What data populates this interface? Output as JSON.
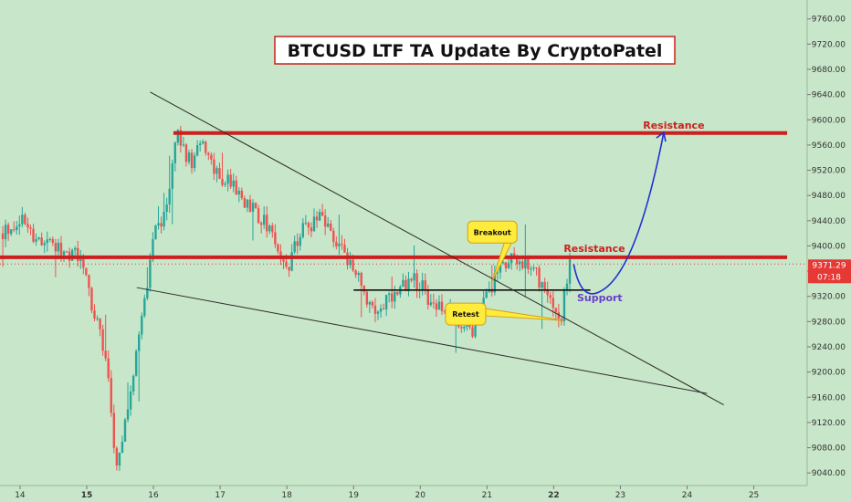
{
  "chart_data": {
    "type": "candlestick",
    "title": "BTCUSD LTF TA Update By CryptoPatel",
    "x_ticks": [
      {
        "label": "14",
        "day": 14
      },
      {
        "label": "15",
        "day": 15
      },
      {
        "label": "16",
        "day": 16
      },
      {
        "label": "17",
        "day": 17
      },
      {
        "label": "18",
        "day": 18
      },
      {
        "label": "19",
        "day": 19
      },
      {
        "label": "20",
        "day": 20
      },
      {
        "label": "21",
        "day": 21
      },
      {
        "label": "22",
        "day": 22
      },
      {
        "label": "23",
        "day": 23
      },
      {
        "label": "24",
        "day": 24
      },
      {
        "label": "25",
        "day": 25
      }
    ],
    "y_ticks": [
      9040,
      9080,
      9120,
      9160,
      9200,
      9240,
      9280,
      9320,
      9360,
      9400,
      9440,
      9480,
      9520,
      9560,
      9600,
      9640,
      9680,
      9720,
      9760
    ],
    "y_tick_labels": [
      "9040.00",
      "9080.00",
      "9120.00",
      "9160.00",
      "9200.00",
      "9240.00",
      "9280.00",
      "9320.00",
      "9360.00",
      "9400.00",
      "9440.00",
      "9480.00",
      "9520.00",
      "9560.00",
      "9600.00",
      "9640.00",
      "9680.00",
      "9720.00",
      "9760.00"
    ],
    "xlim": [
      13.7,
      25.8
    ],
    "ylim": [
      9020,
      9790
    ],
    "price_keypoints": [
      {
        "day": 13.7,
        "price": 9420
      },
      {
        "day": 14.0,
        "price": 9440
      },
      {
        "day": 14.3,
        "price": 9410
      },
      {
        "day": 14.6,
        "price": 9400
      },
      {
        "day": 14.9,
        "price": 9380
      },
      {
        "day": 15.1,
        "price": 9300
      },
      {
        "day": 15.3,
        "price": 9210
      },
      {
        "day": 15.45,
        "price": 9040
      },
      {
        "day": 15.6,
        "price": 9130
      },
      {
        "day": 15.8,
        "price": 9260
      },
      {
        "day": 16.0,
        "price": 9420
      },
      {
        "day": 16.2,
        "price": 9460
      },
      {
        "day": 16.35,
        "price": 9575
      },
      {
        "day": 16.55,
        "price": 9530
      },
      {
        "day": 16.75,
        "price": 9560
      },
      {
        "day": 17.0,
        "price": 9510
      },
      {
        "day": 17.2,
        "price": 9490
      },
      {
        "day": 17.5,
        "price": 9460
      },
      {
        "day": 17.8,
        "price": 9420
      },
      {
        "day": 18.0,
        "price": 9360
      },
      {
        "day": 18.2,
        "price": 9420
      },
      {
        "day": 18.5,
        "price": 9440
      },
      {
        "day": 18.8,
        "price": 9400
      },
      {
        "day": 19.0,
        "price": 9360
      },
      {
        "day": 19.3,
        "price": 9300
      },
      {
        "day": 19.6,
        "price": 9320
      },
      {
        "day": 19.9,
        "price": 9350
      },
      {
        "day": 20.2,
        "price": 9310
      },
      {
        "day": 20.5,
        "price": 9290
      },
      {
        "day": 20.8,
        "price": 9270
      },
      {
        "day": 21.0,
        "price": 9320
      },
      {
        "day": 21.2,
        "price": 9370
      },
      {
        "day": 21.4,
        "price": 9375
      },
      {
        "day": 21.6,
        "price": 9370
      },
      {
        "day": 21.8,
        "price": 9345
      },
      {
        "day": 22.0,
        "price": 9300
      },
      {
        "day": 22.1,
        "price": 9285
      },
      {
        "day": 22.25,
        "price": 9371
      }
    ],
    "last_candle_day": 22.25,
    "horizontal_levels": [
      {
        "name": "resistance-upper",
        "price": 9579,
        "from_day": 16.3,
        "to_day": 25.5,
        "color": "#cc1f1f",
        "label": "Resistance"
      },
      {
        "name": "resistance-lower",
        "price": 9382,
        "from_day": 13.7,
        "to_day": 25.5,
        "color": "#cc1f1f",
        "label": "Resistance"
      },
      {
        "name": "support",
        "price": 9330,
        "from_day": 19.0,
        "to_day": 22.55,
        "color": "#111111",
        "label": "Support"
      }
    ],
    "trendlines": [
      {
        "name": "descending-trendline",
        "from": {
          "day": 15.95,
          "price": 9644
        },
        "to": {
          "day": 24.55,
          "price": 9148
        }
      },
      {
        "name": "lower-wedge-line",
        "from": {
          "day": 15.75,
          "price": 9334
        },
        "to": {
          "day": 24.3,
          "price": 9166
        }
      }
    ],
    "projection": {
      "from": {
        "day": 22.3,
        "price": 9371
      },
      "bottom": {
        "day": 22.7,
        "price": 9328
      },
      "to": {
        "day": 23.65,
        "price": 9580
      },
      "color": "#1f2fd6"
    },
    "callouts": [
      {
        "name": "breakout",
        "label": "Breakout",
        "day": 21.08,
        "price": 9422,
        "pointer_day": 21.08,
        "pointer_price": 9344
      },
      {
        "name": "retest",
        "label": "Retest",
        "day": 20.68,
        "price": 9292,
        "pointer_day": 22.15,
        "pointer_price": 9282
      }
    ],
    "current_price": {
      "value": "9371.29",
      "time_left": "07:18",
      "color": "#e53935"
    },
    "colors": {
      "background": "#c8e6c9",
      "up": "#26a69a",
      "down": "#ef5350",
      "title_border": "#cc1f1f"
    }
  }
}
